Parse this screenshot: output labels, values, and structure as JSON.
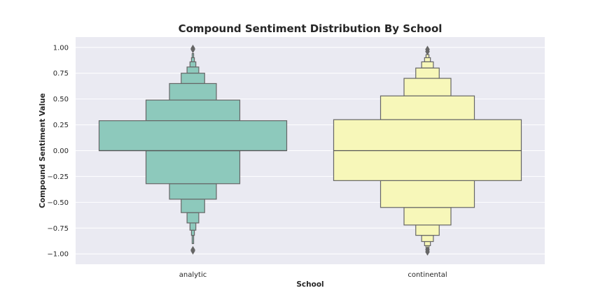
{
  "chart_data": {
    "type": "boxen",
    "title": "Compound Sentiment Distribution By School",
    "xlabel": "School",
    "ylabel": "Compound Sentiment Value",
    "ylim": [
      -1.1,
      1.1
    ],
    "yticks": [
      1.0,
      0.75,
      0.5,
      0.25,
      0.0,
      -0.25,
      -0.5,
      -0.75,
      -1.0
    ],
    "ytick_labels": [
      "1.00",
      "0.75",
      "0.50",
      "0.25",
      "0.00",
      "−0.25",
      "−0.50",
      "−0.75",
      "−1.00"
    ],
    "grid": true,
    "categories": [
      "analytic",
      "continental"
    ],
    "series": [
      {
        "category": "analytic",
        "color": "#8dc9bc",
        "median": 0.0,
        "boxes": [
          {
            "lower": 0.0,
            "upper": 0.29,
            "width": 1.0
          },
          {
            "lower": -0.32,
            "upper": 0.0,
            "width": 0.5
          },
          {
            "lower": 0.29,
            "upper": 0.49,
            "width": 0.5
          },
          {
            "lower": -0.47,
            "upper": -0.32,
            "width": 0.25
          },
          {
            "lower": 0.49,
            "upper": 0.65,
            "width": 0.25
          },
          {
            "lower": -0.6,
            "upper": -0.47,
            "width": 0.125
          },
          {
            "lower": 0.65,
            "upper": 0.75,
            "width": 0.125
          },
          {
            "lower": -0.7,
            "upper": -0.6,
            "width": 0.0625
          },
          {
            "lower": 0.75,
            "upper": 0.81,
            "width": 0.0625
          },
          {
            "lower": -0.77,
            "upper": -0.7,
            "width": 0.03125
          },
          {
            "lower": 0.81,
            "upper": 0.86,
            "width": 0.03125
          },
          {
            "lower": -0.82,
            "upper": -0.77,
            "width": 0.015625
          },
          {
            "lower": 0.86,
            "upper": 0.9,
            "width": 0.015625
          },
          {
            "lower": -0.9,
            "upper": -0.82,
            "width": 0.0078125
          },
          {
            "lower": 0.9,
            "upper": 0.94,
            "width": 0.0078125
          }
        ],
        "outliers": [
          0.98,
          0.99,
          -0.97,
          -0.96
        ]
      },
      {
        "category": "continental",
        "color": "#f7f7b9",
        "median": 0.0,
        "boxes": [
          {
            "lower": -0.29,
            "upper": 0.3,
            "width": 1.0
          },
          {
            "lower": -0.55,
            "upper": -0.29,
            "width": 0.5
          },
          {
            "lower": 0.3,
            "upper": 0.53,
            "width": 0.5
          },
          {
            "lower": -0.72,
            "upper": -0.55,
            "width": 0.25
          },
          {
            "lower": 0.53,
            "upper": 0.7,
            "width": 0.25
          },
          {
            "lower": -0.82,
            "upper": -0.72,
            "width": 0.125
          },
          {
            "lower": 0.7,
            "upper": 0.8,
            "width": 0.125
          },
          {
            "lower": -0.88,
            "upper": -0.82,
            "width": 0.0625
          },
          {
            "lower": 0.8,
            "upper": 0.86,
            "width": 0.0625
          },
          {
            "lower": -0.92,
            "upper": -0.88,
            "width": 0.03125
          },
          {
            "lower": 0.86,
            "upper": 0.9,
            "width": 0.03125
          },
          {
            "lower": -0.95,
            "upper": -0.92,
            "width": 0.015625
          },
          {
            "lower": 0.9,
            "upper": 0.93,
            "width": 0.015625
          }
        ],
        "outliers": [
          0.98,
          0.96,
          -0.98,
          -0.96
        ]
      }
    ],
    "style": {
      "background": "#eaeaf2",
      "grid_color": "#ffffff",
      "edge_color": "#666666",
      "median_color": "#555555",
      "outlier_color": "#666666"
    }
  }
}
